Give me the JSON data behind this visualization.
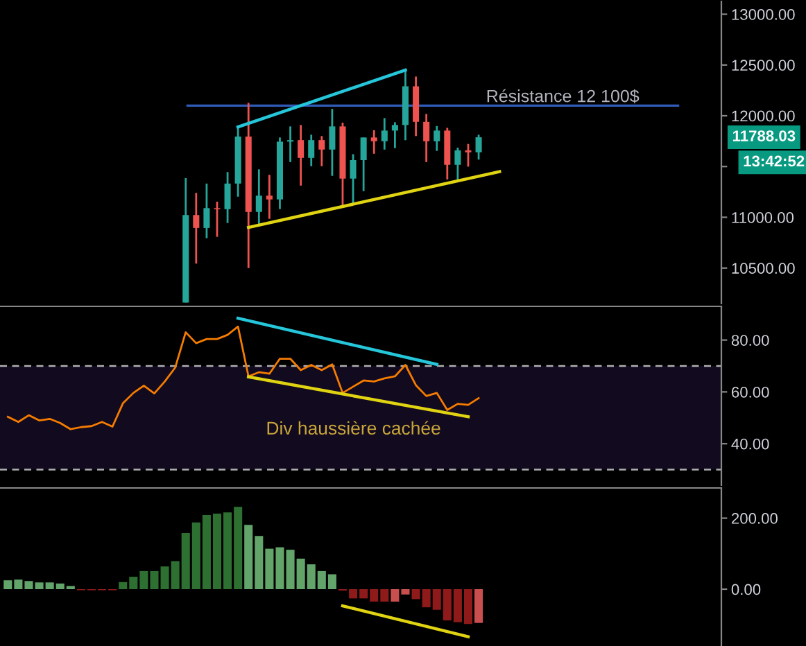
{
  "chart_data": [
    {
      "type": "candlestick",
      "categories": [
        null,
        null,
        null,
        null,
        null,
        null,
        null,
        null,
        null,
        null,
        null,
        null,
        null,
        null,
        null,
        null,
        null,
        null,
        null,
        null,
        null,
        null,
        null,
        null,
        null,
        null,
        null,
        null,
        null,
        null,
        null,
        null,
        null,
        null,
        null,
        null,
        null,
        null,
        null,
        null,
        null,
        null,
        null,
        null,
        null,
        null,
        null,
        null,
        null,
        null,
        null,
        null,
        null,
        null,
        null,
        null,
        null,
        null,
        null,
        null,
        null,
        null,
        null,
        null,
        null,
        null,
        null,
        null,
        null
      ],
      "ohlc": [
        null,
        null,
        null,
        null,
        null,
        null,
        null,
        null,
        null,
        null,
        null,
        null,
        null,
        null,
        null,
        null,
        null,
        [
          10160,
          11386,
          10160,
          11022
        ],
        [
          11022,
          11240,
          10544,
          10895
        ],
        [
          10895,
          11332,
          10794,
          11090
        ],
        [
          11090,
          11154,
          10808,
          11080
        ],
        [
          11080,
          11445,
          10944,
          11332
        ],
        [
          11332,
          11885,
          11203,
          11795
        ],
        [
          11795,
          12127,
          10500,
          11053
        ],
        [
          11053,
          11472,
          10909,
          11213
        ],
        [
          11213,
          11418,
          10985,
          11176
        ],
        [
          11176,
          11786,
          11081,
          11745
        ],
        [
          11745,
          11895,
          11544,
          11760
        ],
        [
          11760,
          11909,
          11312,
          11585
        ],
        [
          11585,
          11813,
          11503,
          11760
        ],
        [
          11760,
          11800,
          11503,
          11667
        ],
        [
          11667,
          12068,
          11408,
          11895
        ],
        [
          11895,
          11932,
          11108,
          11381
        ],
        [
          11381,
          11622,
          11135,
          11563
        ],
        [
          11563,
          11786,
          11258,
          11786
        ],
        [
          11786,
          11858,
          11626,
          11749
        ],
        [
          11749,
          11977,
          11667,
          11854
        ],
        [
          11854,
          11936,
          11681,
          11909
        ],
        [
          11909,
          12464,
          11759,
          12290
        ],
        [
          12290,
          12386,
          11800,
          11940
        ],
        [
          11940,
          12018,
          11544,
          11749
        ],
        [
          11749,
          11899,
          11654,
          11854
        ],
        [
          11854,
          11881,
          11373,
          11517
        ],
        [
          11517,
          11686,
          11363,
          11659
        ],
        [
          11659,
          11722,
          11499,
          11640
        ],
        [
          11640,
          11813,
          11568,
          11788.03
        ],
        null,
        null,
        null,
        null,
        null,
        null,
        null,
        null,
        null,
        null,
        null,
        null,
        null,
        null,
        null,
        null,
        null,
        null,
        null,
        null,
        null,
        null,
        null
      ],
      "colors": [
        null,
        null,
        null,
        null,
        null,
        null,
        null,
        null,
        null,
        null,
        null,
        null,
        null,
        null,
        null,
        null,
        null,
        "#26a69a",
        "#ef5350",
        "#26a69a",
        "#ef5350",
        "#26a69a",
        "#26a69a",
        "#ef5350",
        "#26a69a",
        "#ef5350",
        "#26a69a",
        "#26a69a",
        "#ef5350",
        "#26a69a",
        "#ef5350",
        "#26a69a",
        "#ef5350",
        "#26a69a",
        "#26a69a",
        "#ef5350",
        "#26a69a",
        "#26a69a",
        "#26a69a",
        "#ef5350",
        "#ef5350",
        "#26a69a",
        "#ef5350",
        "#26a69a",
        "#ef5350",
        "#26a69a",
        null,
        null,
        null,
        null,
        null,
        null,
        null,
        null,
        null,
        null,
        null,
        null,
        null,
        null,
        null,
        null,
        null,
        null,
        null,
        null,
        null,
        null,
        null
      ],
      "series": [
        {
          "type": "line",
          "color": "#26c6da",
          "values": [
            null,
            null,
            null,
            null,
            null,
            null,
            null,
            null,
            null,
            null,
            null,
            null,
            null,
            null,
            null,
            null,
            null,
            null,
            null,
            null,
            null,
            null,
            11890,
            null,
            null,
            null,
            null,
            null,
            null,
            null,
            null,
            null,
            null,
            null,
            null,
            null,
            null,
            null,
            12450,
            null,
            null,
            null,
            null,
            null,
            null,
            null,
            null,
            null,
            null,
            null,
            null,
            null,
            null,
            null,
            null,
            null,
            null,
            null,
            null,
            null,
            null,
            null,
            null,
            null,
            null,
            null,
            null,
            null,
            null
          ]
        },
        {
          "type": "line",
          "color": "#e0d412",
          "values": [
            null,
            null,
            null,
            null,
            null,
            null,
            null,
            null,
            null,
            null,
            null,
            null,
            null,
            null,
            null,
            null,
            null,
            null,
            null,
            null,
            null,
            null,
            null,
            10900,
            null,
            null,
            null,
            null,
            null,
            null,
            null,
            null,
            null,
            null,
            null,
            null,
            null,
            null,
            null,
            null,
            null,
            null,
            null,
            null,
            null,
            null,
            null,
            11450,
            null,
            null,
            null,
            null,
            null,
            null,
            null,
            null,
            null,
            null,
            null,
            null,
            null,
            null,
            null,
            null,
            null,
            null,
            null,
            null,
            null
          ]
        }
      ],
      "ylim": [
        10150,
        13140
      ],
      "yticks": [
        {
          "value": 10500,
          "label": "10500.00"
        },
        {
          "value": 11000,
          "label": "11000.00"
        },
        {
          "value": 11500,
          "label": null
        },
        {
          "value": 12000,
          "label": "12000.00"
        },
        {
          "value": 12500,
          "label": "12500.00"
        },
        {
          "value": 13000,
          "label": "13000.00"
        }
      ],
      "ref_lines": [
        {
          "axis": "y",
          "value": 12100,
          "label": "Résistance 12 100$",
          "color": "#2f5bb7",
          "line_style": "solid"
        }
      ],
      "annotations": [
        "11788.03",
        "13:42:52"
      ],
      "tick_labels": "y",
      "grid": false,
      "legend": false
    },
    {
      "type": "line",
      "categories": [
        null,
        null,
        null,
        null,
        null,
        null,
        null,
        null,
        null,
        null,
        null,
        null,
        null,
        null,
        null,
        null,
        null,
        null,
        null,
        null,
        null,
        null,
        null,
        null,
        null,
        null,
        null,
        null,
        null,
        null,
        null,
        null,
        null,
        null,
        null,
        null,
        null,
        null,
        null,
        null,
        null,
        null,
        null,
        null,
        null,
        null,
        null,
        null,
        null,
        null,
        null,
        null,
        null,
        null,
        null,
        null,
        null,
        null,
        null,
        null,
        null,
        null,
        null,
        null,
        null,
        null,
        null,
        null,
        null
      ],
      "series": [
        {
          "type": "line",
          "color": "#f57c00",
          "values": [
            50.4,
            48.4,
            51,
            49,
            49.6,
            48,
            45.6,
            46.4,
            46.8,
            48.4,
            46.6,
            55.6,
            59.6,
            62.4,
            59.4,
            64,
            69.4,
            83,
            78.8,
            80.4,
            80.4,
            82,
            85.2,
            66,
            67.6,
            67,
            72.8,
            72.8,
            68.4,
            70.4,
            68.4,
            70.6,
            59.6,
            62,
            64.4,
            64,
            65.2,
            66,
            70.4,
            62.6,
            58.4,
            59.6,
            53,
            55.4,
            55,
            57.6,
            null,
            null,
            null,
            null,
            null,
            null,
            null,
            null,
            null,
            null,
            null,
            null,
            null,
            null,
            null,
            null,
            null,
            null,
            null,
            null,
            null,
            null,
            null
          ]
        },
        {
          "type": "line",
          "color": "#26c6da",
          "values": [
            null,
            null,
            null,
            null,
            null,
            null,
            null,
            null,
            null,
            null,
            null,
            null,
            null,
            null,
            null,
            null,
            null,
            null,
            null,
            null,
            null,
            null,
            88.4,
            null,
            null,
            null,
            null,
            null,
            null,
            null,
            null,
            null,
            null,
            null,
            null,
            null,
            null,
            null,
            null,
            null,
            null,
            70.6,
            null,
            null,
            null,
            null,
            null,
            null,
            null,
            null,
            null,
            null,
            null,
            null,
            null,
            null,
            null,
            null,
            null,
            null,
            null,
            null,
            null,
            null,
            null,
            null,
            null,
            null,
            null
          ]
        },
        {
          "type": "line",
          "color": "#e0d412",
          "values": [
            null,
            null,
            null,
            null,
            null,
            null,
            null,
            null,
            null,
            null,
            null,
            null,
            null,
            null,
            null,
            null,
            null,
            null,
            null,
            null,
            null,
            null,
            null,
            65.8,
            null,
            null,
            null,
            null,
            null,
            null,
            null,
            null,
            null,
            null,
            null,
            null,
            null,
            null,
            null,
            null,
            null,
            null,
            null,
            null,
            50.4,
            null,
            null,
            null,
            null,
            null,
            null,
            null,
            null,
            null,
            null,
            null,
            null,
            null,
            null,
            null,
            null,
            null,
            null,
            null,
            null,
            null,
            null,
            null,
            null
          ]
        }
      ],
      "ylim": [
        24,
        93
      ],
      "yticks": [
        {
          "value": 40,
          "label": "40.00"
        },
        {
          "value": 60,
          "label": "60.00"
        },
        {
          "value": 80,
          "label": "80.00"
        }
      ],
      "ref_lines": [
        {
          "axis": "y",
          "value": 70,
          "color": "#b0b0b0",
          "line_style": "dashed"
        },
        {
          "axis": "y",
          "value": 30,
          "color": "#b0b0b0",
          "line_style": "dashed"
        }
      ],
      "bands": [
        {
          "axis": "y",
          "from": 30,
          "to": 70,
          "color": "#120a1f"
        }
      ],
      "annotations": [
        "Div haussière cachée"
      ],
      "tick_labels": "y",
      "grid": false,
      "legend": false
    },
    {
      "type": "bar",
      "categories": [
        null,
        null,
        null,
        null,
        null,
        null,
        null,
        null,
        null,
        null,
        null,
        null,
        null,
        null,
        null,
        null,
        null,
        null,
        null,
        null,
        null,
        null,
        null,
        null,
        null,
        null,
        null,
        null,
        null,
        null,
        null,
        null,
        null,
        null,
        null,
        null,
        null,
        null,
        null,
        null,
        null,
        null,
        null,
        null,
        null,
        null,
        null,
        null,
        null,
        null,
        null,
        null,
        null,
        null,
        null,
        null,
        null,
        null,
        null,
        null,
        null,
        null,
        null,
        null,
        null,
        null,
        null,
        null,
        null
      ],
      "series": [
        {
          "type": "bar",
          "values": [
            25,
            27,
            23,
            19,
            19,
            16,
            9,
            -3,
            -3,
            -3,
            -3,
            20,
            35,
            51,
            51,
            64,
            79,
            158,
            188,
            209,
            213,
            216,
            232,
            181,
            150,
            114,
            118,
            111,
            86,
            70,
            51,
            42,
            -4,
            -26,
            -26,
            -35,
            -35,
            -35,
            -15,
            -28,
            -51,
            -58,
            -88,
            -93,
            -98,
            -95,
            null,
            null,
            null,
            null,
            null,
            null,
            null,
            null,
            null,
            null,
            null,
            null,
            null,
            null,
            null,
            null,
            null,
            null,
            null,
            null,
            null,
            null,
            null
          ],
          "colors": [
            "#62a46a",
            "#62a46a",
            "#62a46a",
            "#62a46a",
            "#62a46a",
            "#62a46a",
            "#62a46a",
            "#8e1a1a",
            "#8e1a1a",
            "#8e1a1a",
            "#8e1a1a",
            "#2e7032",
            "#2e7032",
            "#2e7032",
            "#2e7032",
            "#2e7032",
            "#2e7032",
            "#2e7032",
            "#2e7032",
            "#2e7032",
            "#2e7032",
            "#2e7032",
            "#2e7032",
            "#62a46a",
            "#62a46a",
            "#62a46a",
            "#62a46a",
            "#62a46a",
            "#62a46a",
            "#62a46a",
            "#62a46a",
            "#62a46a",
            "#8e1a1a",
            "#8e1a1a",
            "#8e1a1a",
            "#8e1a1a",
            "#8e1a1a",
            "#c94f4f",
            "#c94f4f",
            "#8e1a1a",
            "#8e1a1a",
            "#8e1a1a",
            "#8e1a1a",
            "#8e1a1a",
            "#8e1a1a",
            "#c94f4f",
            null,
            null,
            null,
            null,
            null,
            null,
            null,
            null,
            null,
            null,
            null,
            null,
            null,
            null,
            null,
            null,
            null,
            null,
            null,
            null,
            null,
            null,
            null
          ]
        },
        {
          "type": "line",
          "color": "#e0d412",
          "values": [
            null,
            null,
            null,
            null,
            null,
            null,
            null,
            null,
            null,
            null,
            null,
            null,
            null,
            null,
            null,
            null,
            null,
            null,
            null,
            null,
            null,
            null,
            null,
            null,
            null,
            null,
            null,
            null,
            null,
            null,
            null,
            null,
            -47,
            null,
            null,
            null,
            null,
            null,
            null,
            null,
            null,
            null,
            null,
            null,
            -134,
            null,
            null,
            null,
            null,
            null,
            null,
            null,
            null,
            null,
            null,
            null,
            null,
            null,
            null,
            null,
            null,
            null,
            null,
            null,
            null,
            null,
            null,
            null,
            null
          ]
        }
      ],
      "ylim": [
        -160,
        285
      ],
      "yticks": [
        {
          "value": 0,
          "label": "0.00"
        },
        {
          "value": 200,
          "label": "200.00"
        }
      ],
      "tick_labels": "y",
      "grid": false,
      "legend": false
    }
  ]
}
